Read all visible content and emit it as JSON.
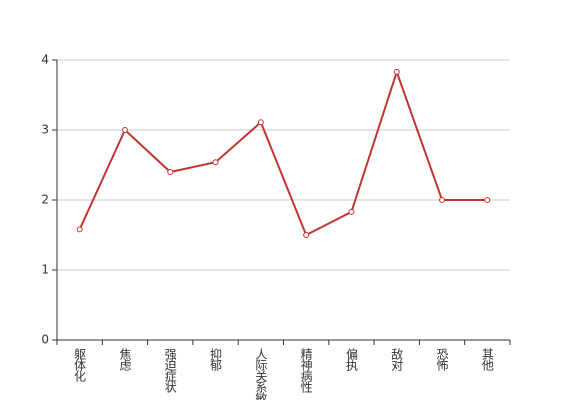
{
  "chart_data": {
    "type": "line",
    "categories": [
      "躯体化",
      "焦虑",
      "强迫症状",
      "抑郁",
      "人际关系敏感",
      "精神病性",
      "偏执",
      "敌对",
      "恐怖",
      "其他"
    ],
    "values": [
      1.58,
      3.0,
      2.4,
      2.54,
      3.11,
      1.5,
      1.83,
      3.83,
      2.0,
      2.0
    ],
    "color": "#c23531",
    "ylim": [
      0,
      4
    ],
    "yticks": [
      0,
      1,
      2,
      3,
      4
    ],
    "grid": true
  }
}
